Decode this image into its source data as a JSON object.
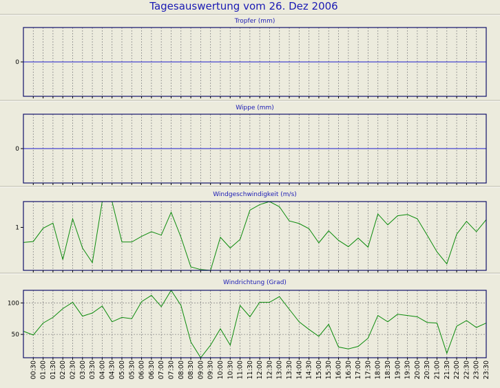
{
  "title": "Tagesauswertung vom 26. Dez 2006",
  "colors": {
    "background": "#ecebdd",
    "plot_background": "#ecebdd",
    "title_text": "#1a1ab4",
    "zero_line": "#1a1acc",
    "series_line": "#0a8a0a",
    "grid": "#888888",
    "frame": "#000000"
  },
  "chart_data": [
    {
      "type": "line",
      "title": "Tropfer (mm)",
      "ylim": [
        -1,
        1
      ],
      "y_ticks": [
        0
      ],
      "y_tick_labels": [
        "0"
      ],
      "grid": "vertical-dashed",
      "series": [
        {
          "values": [
            0,
            0
          ]
        }
      ]
    },
    {
      "type": "line",
      "title": "Wippe (mm)",
      "ylim": [
        -1,
        1
      ],
      "y_ticks": [
        0
      ],
      "y_tick_labels": [
        "0"
      ],
      "grid": "vertical-dashed",
      "series": [
        {
          "values": [
            0,
            0
          ]
        }
      ]
    },
    {
      "type": "line",
      "title": "Windgeschwindigkeit (m/s)",
      "ylim": [
        0,
        1.6
      ],
      "y_ticks": [
        1
      ],
      "y_tick_labels": [
        "1"
      ],
      "grid": "vertical-dashed",
      "series": [
        {
          "values": [
            0.65,
            0.67,
            0.98,
            1.1,
            0.25,
            1.2,
            0.52,
            0.18,
            1.6,
            1.6,
            0.66,
            0.66,
            0.79,
            0.9,
            0.82,
            1.35,
            0.77,
            0.08,
            0.02,
            -0.03,
            0.77,
            0.52,
            0.72,
            1.4,
            1.53,
            1.62,
            1.48,
            1.15,
            1.09,
            0.97,
            0.64,
            0.92,
            0.7,
            0.55,
            0.75,
            0.54,
            1.31,
            1.06,
            1.27,
            1.3,
            1.2,
            0.82,
            0.43,
            0.15,
            0.84,
            1.14,
            0.9,
            1.18
          ]
        }
      ]
    },
    {
      "type": "line",
      "title": "Windrichtung (Grad)",
      "ylim": [
        13,
        120
      ],
      "y_ticks": [
        50,
        100
      ],
      "y_tick_labels": [
        "50",
        "100"
      ],
      "grid": "both-dashed",
      "x_tick_labels": [
        "00:30",
        "01:00",
        "01:30",
        "02:00",
        "02:30",
        "03:00",
        "03:30",
        "04:00",
        "04:30",
        "05:00",
        "05:30",
        "06:00",
        "06:30",
        "07:00",
        "07:30",
        "08:00",
        "08:30",
        "09:00",
        "09:30",
        "10:00",
        "10:30",
        "11:00",
        "11:30",
        "12:00",
        "12:30",
        "13:00",
        "13:30",
        "14:00",
        "14:30",
        "15:00",
        "15:30",
        "16:00",
        "16:30",
        "17:00",
        "17:30",
        "18:00",
        "18:30",
        "19:00",
        "19:30",
        "20:00",
        "20:30",
        "21:00",
        "21:30",
        "22:00",
        "22:30",
        "23:00",
        "23:30"
      ],
      "series": [
        {
          "values": [
            55,
            49,
            68,
            77,
            91,
            101,
            79,
            84,
            95,
            70,
            77,
            75,
            102,
            112,
            94,
            120,
            96,
            38,
            13,
            33,
            59,
            33,
            96,
            78,
            101,
            101,
            110,
            90,
            70,
            58,
            47,
            66,
            30,
            27,
            31,
            44,
            80,
            70,
            82,
            80,
            78,
            69,
            68,
            20,
            63,
            72,
            61,
            68
          ]
        }
      ]
    }
  ]
}
